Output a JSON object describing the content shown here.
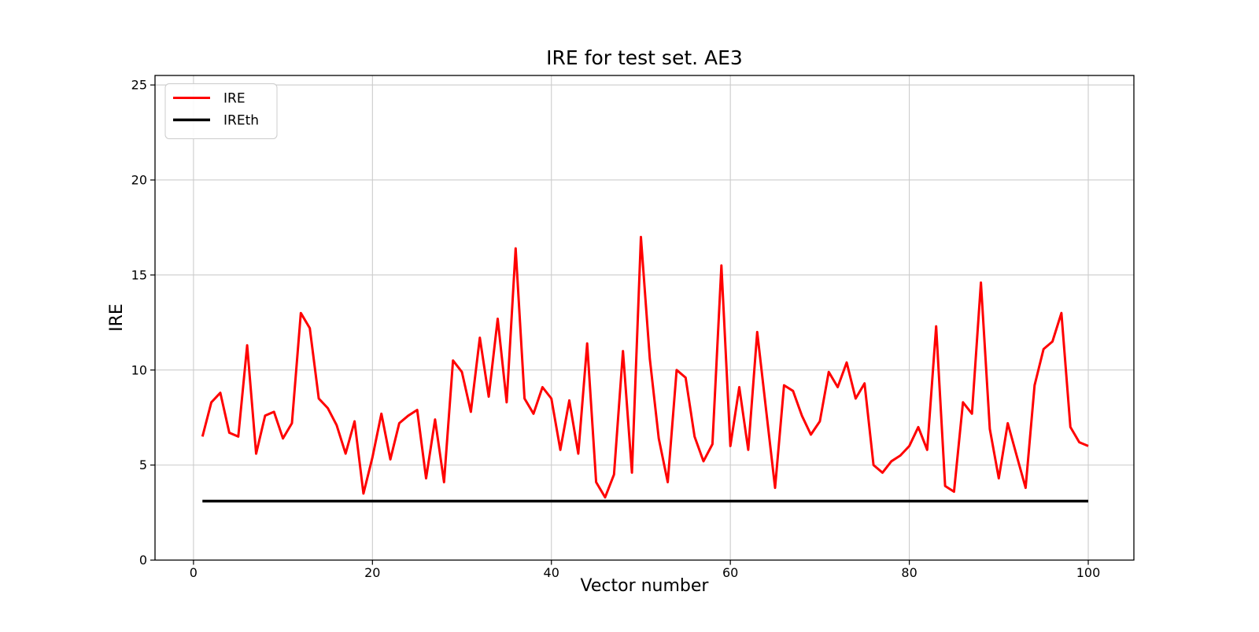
{
  "figure": {
    "background": "#ffffff",
    "spine_color": "#000000"
  },
  "chart_data": {
    "type": "line",
    "title": "IRE for test set. AE3",
    "xlabel": "Vector number",
    "ylabel": "IRE",
    "x_ticks": [
      0,
      20,
      40,
      60,
      80,
      100
    ],
    "y_ticks": [
      0,
      5,
      10,
      15,
      20,
      25
    ],
    "xlim": [
      -4.3,
      105.1
    ],
    "ylim": [
      0,
      25.5
    ],
    "grid": true,
    "grid_color": "#cccccc",
    "legend": {
      "position": "upper left",
      "entries": [
        "IRE",
        "IREth"
      ]
    },
    "series": [
      {
        "name": "IRE",
        "color": "#ff0000",
        "x_start": 1,
        "x_step": 1,
        "n_points": 100,
        "values": [
          6.5,
          8.3,
          8.8,
          6.7,
          6.5,
          11.3,
          5.6,
          7.6,
          7.8,
          6.4,
          7.2,
          13.0,
          12.2,
          8.5,
          8.0,
          7.1,
          5.6,
          7.3,
          3.5,
          5.4,
          7.7,
          5.3,
          7.2,
          7.6,
          7.9,
          4.3,
          7.4,
          4.1,
          10.5,
          9.9,
          7.8,
          11.7,
          8.6,
          12.7,
          8.3,
          16.4,
          8.5,
          7.7,
          9.1,
          8.5,
          5.8,
          8.4,
          5.6,
          11.4,
          4.1,
          3.3,
          4.5,
          11.0,
          4.6,
          17.0,
          10.6,
          6.4,
          4.1,
          10.0,
          9.6,
          6.5,
          5.2,
          6.1,
          15.5,
          6.0,
          9.1,
          5.8,
          12.0,
          7.9,
          3.8,
          9.2,
          8.9,
          7.6,
          6.6,
          7.3,
          9.9,
          9.1,
          10.4,
          8.5,
          9.3,
          5.0,
          4.6,
          5.2,
          5.5,
          6.0,
          7.0,
          5.8,
          12.3,
          3.9,
          3.6,
          8.3,
          7.7,
          14.6,
          6.9,
          4.3,
          7.2,
          5.5,
          3.8,
          9.2,
          11.1,
          11.5,
          13.0,
          7.0,
          6.2,
          6.0
        ]
      },
      {
        "name": "IREth",
        "color": "#000000",
        "constant_value": 3.1,
        "x_range": [
          1,
          100
        ]
      }
    ]
  }
}
